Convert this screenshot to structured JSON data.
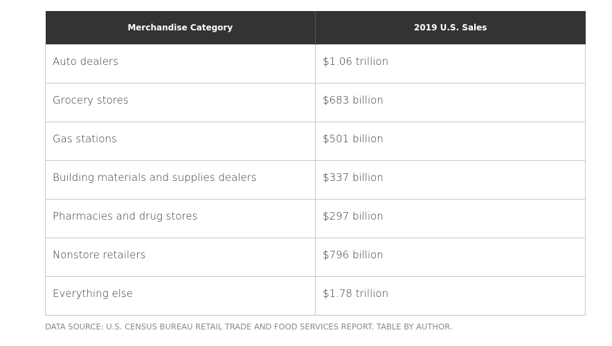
{
  "table": {
    "header": [
      "Merchandise Category",
      "2019 U.S. Sales"
    ],
    "rows": [
      [
        "Auto dealers",
        "$1.06 trillion"
      ],
      [
        "Grocery stores",
        "$683 billion"
      ],
      [
        "Gas stations",
        "$501 billion"
      ],
      [
        "Building materials and supplies dealers",
        "$337 billion"
      ],
      [
        "Pharmacies and drug stores",
        "$297 billion"
      ],
      [
        "Nonstore retailers",
        "$796 billion"
      ],
      [
        "Everything else",
        "$1.78 trillion"
      ]
    ]
  },
  "source": "DATA SOURCE: U.S. CENSUS BUREAU RETAIL TRADE AND FOOD SERVICES REPORT. TABLE BY AUTHOR."
}
